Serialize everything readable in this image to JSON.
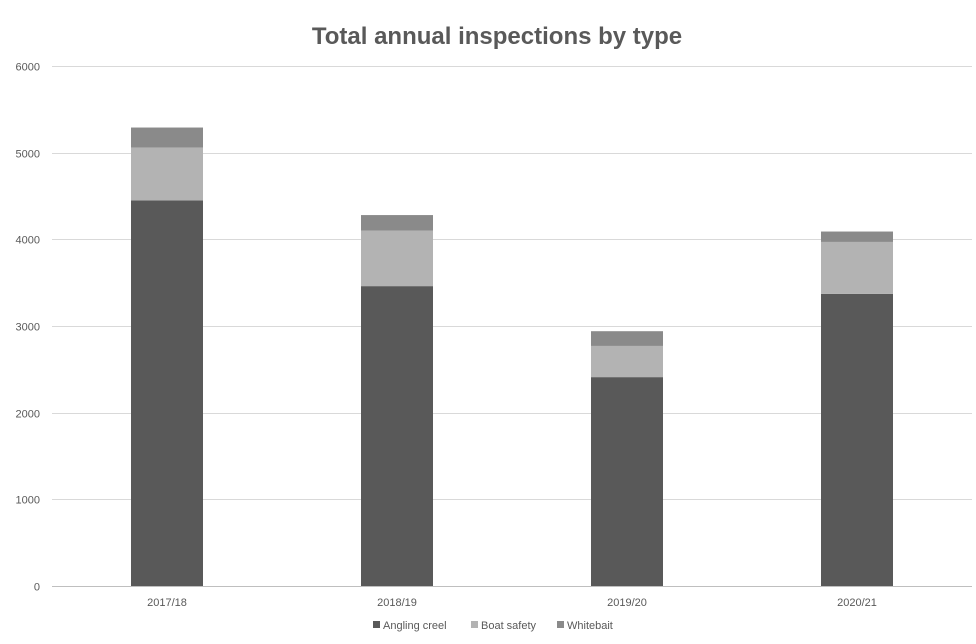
{
  "chart_data": {
    "type": "bar",
    "stacked": true,
    "title": "Total annual inspections by type",
    "xlabel": "",
    "ylabel": "",
    "categories": [
      "2017/18",
      "2018/19",
      "2019/20",
      "2020/21"
    ],
    "ylim": [
      0,
      6000
    ],
    "yticks": [
      0,
      1000,
      2000,
      3000,
      4000,
      5000,
      6000
    ],
    "grid": true,
    "legend_position": "bottom",
    "series": [
      {
        "name": "Angling creel",
        "color": "#595959",
        "values": [
          4450,
          3460,
          2410,
          3370
        ]
      },
      {
        "name": "Boat safety",
        "color": "#b3b3b3",
        "values": [
          610,
          640,
          360,
          600
        ]
      },
      {
        "name": "Whitebait",
        "color": "#8a8a8a",
        "values": [
          230,
          180,
          170,
          120
        ]
      }
    ]
  }
}
